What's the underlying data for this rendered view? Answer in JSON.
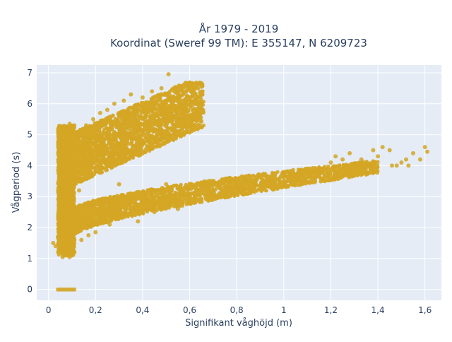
{
  "chart_data": {
    "type": "scatter",
    "title_line1": "År 1979 - 2019",
    "title_line2": "Koordinat (Sweref 99 TM): E 355147, N 6209723",
    "xlabel": "Signifikant våghöjd (m)",
    "ylabel": "Vågperiod (s)",
    "xlim": [
      -0.05,
      1.67
    ],
    "ylim": [
      -0.35,
      7.25
    ],
    "x_ticks": [
      0,
      0.2,
      0.4,
      0.6,
      0.8,
      1.0,
      1.2,
      1.4,
      1.6
    ],
    "x_tick_labels": [
      "0",
      "0,2",
      "0,4",
      "0,6",
      "0,8",
      "1",
      "1,2",
      "1,4",
      "1,6"
    ],
    "y_ticks": [
      0,
      1,
      2,
      3,
      4,
      5,
      6,
      7
    ],
    "y_tick_labels": [
      "0",
      "1",
      "2",
      "3",
      "4",
      "5",
      "6",
      "7"
    ],
    "grid": true,
    "colors": {
      "plot_bg": "#e5ecf6",
      "grid": "#ffffff",
      "marker": "#d4a625"
    },
    "series": [
      {
        "points": [
          [
            0.04,
            0.0
          ],
          [
            0.05,
            0.0
          ],
          [
            0.06,
            0.0
          ],
          [
            0.07,
            0.0
          ],
          [
            0.08,
            0.0
          ],
          [
            0.09,
            0.0
          ],
          [
            0.1,
            0.0
          ],
          [
            0.11,
            0.0
          ],
          [
            0.02,
            1.5
          ],
          [
            0.03,
            1.4
          ],
          [
            0.04,
            1.7
          ],
          [
            0.05,
            2.2
          ],
          [
            0.05,
            3.0
          ],
          [
            0.05,
            3.6
          ],
          [
            0.05,
            4.2
          ],
          [
            0.06,
            4.8
          ],
          [
            0.06,
            1.05
          ],
          [
            0.07,
            1.1
          ],
          [
            0.08,
            1.1
          ],
          [
            0.09,
            1.05
          ],
          [
            0.1,
            1.1
          ],
          [
            0.11,
            1.2
          ],
          [
            0.06,
            2.6
          ],
          [
            0.07,
            3.3
          ],
          [
            0.07,
            3.9
          ],
          [
            0.08,
            4.5
          ],
          [
            0.08,
            5.1
          ],
          [
            0.09,
            5.35
          ],
          [
            0.09,
            2.1
          ],
          [
            0.09,
            2.9
          ],
          [
            0.1,
            3.7
          ],
          [
            0.1,
            4.3
          ],
          [
            0.1,
            4.9
          ],
          [
            0.11,
            1.6
          ],
          [
            0.11,
            5.3
          ],
          [
            0.12,
            4.0
          ],
          [
            0.12,
            2.4
          ],
          [
            0.13,
            5.0
          ],
          [
            0.13,
            3.2
          ],
          [
            0.14,
            1.6
          ],
          [
            0.14,
            2.0
          ],
          [
            0.15,
            4.4
          ],
          [
            0.16,
            5.3
          ],
          [
            0.17,
            1.75
          ],
          [
            0.18,
            3.9
          ],
          [
            0.19,
            5.5
          ],
          [
            0.2,
            1.85
          ],
          [
            0.22,
            5.7
          ],
          [
            0.23,
            4.7
          ],
          [
            0.25,
            5.8
          ],
          [
            0.26,
            2.1
          ],
          [
            0.28,
            6.0
          ],
          [
            0.3,
            5.3
          ],
          [
            0.32,
            6.1
          ],
          [
            0.34,
            4.7
          ],
          [
            0.35,
            6.3
          ],
          [
            0.38,
            5.5
          ],
          [
            0.4,
            6.2
          ],
          [
            0.42,
            4.6
          ],
          [
            0.44,
            6.4
          ],
          [
            0.46,
            5.7
          ],
          [
            0.48,
            6.5
          ],
          [
            0.5,
            6.1
          ],
          [
            0.51,
            6.95
          ],
          [
            0.52,
            5.2
          ],
          [
            0.54,
            6.5
          ],
          [
            0.56,
            6.0
          ],
          [
            0.58,
            6.4
          ],
          [
            0.6,
            5.5
          ],
          [
            0.62,
            6.2
          ],
          [
            0.63,
            6.5
          ],
          [
            0.65,
            6.55
          ],
          [
            0.55,
            5.1
          ],
          [
            0.25,
            4.2
          ],
          [
            0.28,
            4.6
          ],
          [
            0.3,
            4.3
          ],
          [
            0.27,
            2.4
          ],
          [
            0.3,
            3.4
          ],
          [
            0.35,
            2.6
          ],
          [
            0.38,
            2.2
          ],
          [
            0.4,
            2.8
          ],
          [
            0.45,
            2.5
          ],
          [
            0.5,
            2.7
          ],
          [
            0.5,
            3.4
          ],
          [
            0.55,
            2.6
          ],
          [
            0.58,
            3.1
          ],
          [
            0.6,
            2.9
          ],
          [
            0.65,
            2.9
          ],
          [
            0.7,
            3.2
          ],
          [
            0.75,
            3.1
          ],
          [
            0.8,
            3.5
          ],
          [
            0.85,
            3.3
          ],
          [
            0.9,
            3.7
          ],
          [
            0.95,
            3.5
          ],
          [
            1.0,
            3.8
          ],
          [
            1.05,
            3.7
          ],
          [
            1.1,
            3.9
          ],
          [
            1.15,
            3.8
          ],
          [
            1.2,
            4.1
          ],
          [
            1.25,
            4.2
          ],
          [
            1.28,
            4.4
          ],
          [
            1.3,
            3.9
          ],
          [
            1.35,
            4.1
          ],
          [
            1.4,
            4.3
          ],
          [
            1.42,
            4.6
          ],
          [
            1.45,
            4.5
          ],
          [
            1.48,
            4.0
          ],
          [
            1.5,
            4.1
          ],
          [
            1.52,
            4.2
          ],
          [
            1.55,
            4.4
          ],
          [
            1.58,
            4.2
          ],
          [
            1.6,
            4.6
          ],
          [
            1.61,
            4.45
          ],
          [
            1.53,
            4.0
          ],
          [
            1.46,
            4.0
          ],
          [
            1.38,
            4.5
          ],
          [
            1.33,
            4.2
          ],
          [
            1.22,
            4.3
          ]
        ]
      }
    ]
  }
}
